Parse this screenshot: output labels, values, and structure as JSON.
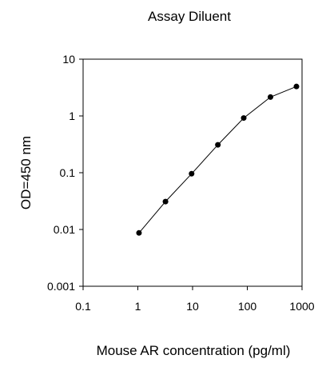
{
  "chart_data": {
    "type": "line",
    "title": "Assay Diluent",
    "xlabel": "Mouse AR concentration (pg/ml)",
    "ylabel": "OD=450 nm",
    "xscale": "log",
    "yscale": "log",
    "xlim": [
      0.1,
      1000
    ],
    "ylim": [
      0.001,
      10
    ],
    "x_ticks": [
      "0.1",
      "1",
      "10",
      "100",
      "1000"
    ],
    "y_ticks": [
      "0.001",
      "0.01",
      "0.1",
      "1",
      "10"
    ],
    "grid": false,
    "series": [
      {
        "x": [
          1.05,
          3.2,
          9.6,
          29,
          86,
          265,
          790
        ],
        "y": [
          0.0087,
          0.031,
          0.096,
          0.31,
          0.92,
          2.15,
          3.3
        ]
      }
    ]
  }
}
